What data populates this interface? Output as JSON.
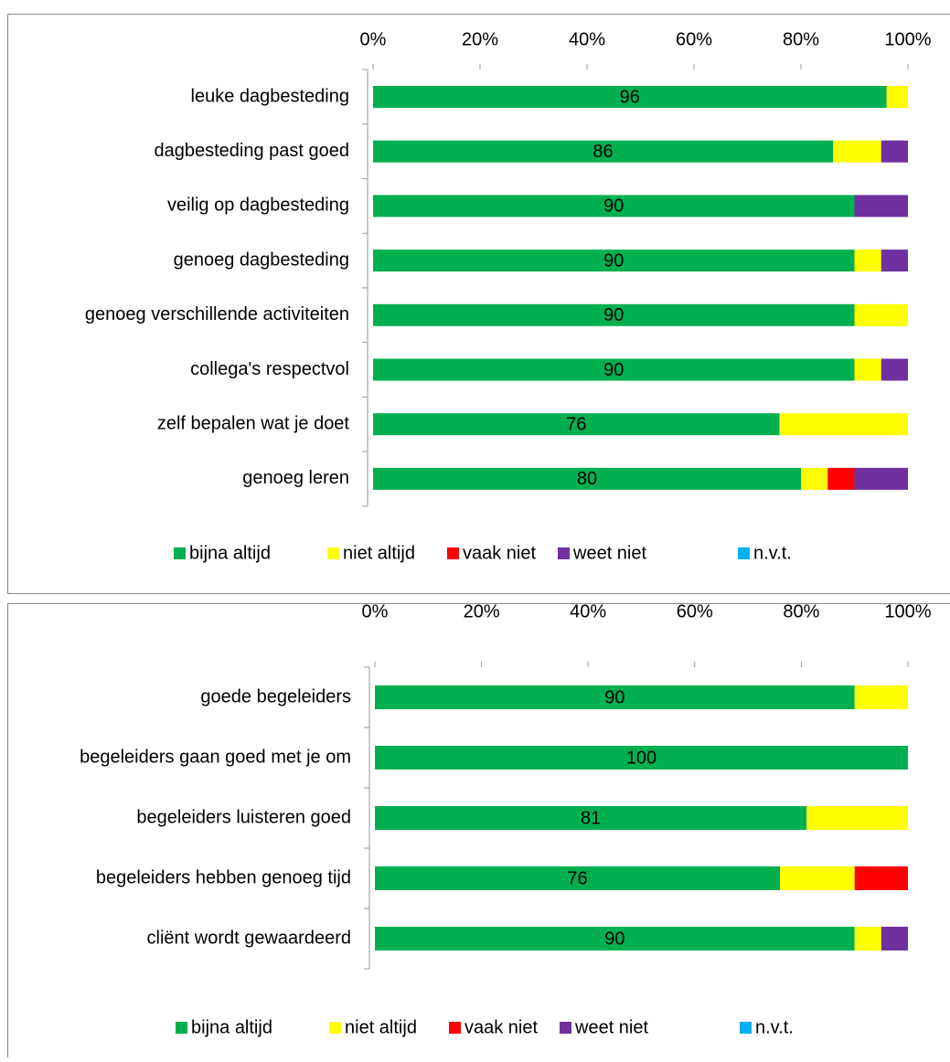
{
  "chart_data": [
    {
      "type": "stacked_barh",
      "categories": [
        "leuke dagbesteding",
        "dagbesteding past goed",
        "veilig op dagbesteding",
        "genoeg dagbesteding",
        "genoeg verschillende activiteiten",
        "collega's respectvol",
        "zelf bepalen wat je doet",
        "genoeg leren"
      ],
      "series": [
        {
          "name": "bijna altijd",
          "color": "#00b050",
          "values": [
            96,
            86,
            90,
            90,
            90,
            90,
            76,
            80
          ]
        },
        {
          "name": "niet altijd",
          "color": "#ffff00",
          "values": [
            4,
            9,
            0,
            5,
            10,
            5,
            24,
            5
          ]
        },
        {
          "name": "vaak niet",
          "color": "#ff0000",
          "values": [
            0,
            0,
            0,
            0,
            0,
            0,
            0,
            5
          ]
        },
        {
          "name": "weet niet",
          "color": "#7030a0",
          "values": [
            0,
            5,
            10,
            5,
            0,
            5,
            0,
            10
          ]
        },
        {
          "name": "n.v.t.",
          "color": "#00b0f0",
          "values": [
            0,
            0,
            0,
            0,
            0,
            0,
            0,
            0
          ]
        }
      ],
      "xlim": [
        0,
        100
      ],
      "xticks": [
        {
          "value": 0,
          "label": "0%"
        },
        {
          "value": 20,
          "label": "20%"
        },
        {
          "value": 40,
          "label": "40%"
        },
        {
          "value": 60,
          "label": "60%"
        },
        {
          "value": 80,
          "label": "80%"
        },
        {
          "value": 100,
          "label": "100%"
        }
      ],
      "legend": "bottom"
    },
    {
      "type": "stacked_barh",
      "categories": [
        "goede begeleiders",
        "begeleiders gaan goed met je om",
        "begeleiders luisteren goed",
        "begeleiders hebben genoeg tijd",
        "cliënt wordt gewaardeerd"
      ],
      "series": [
        {
          "name": "bijna altijd",
          "color": "#00b050",
          "values": [
            90,
            100,
            81,
            76,
            90
          ]
        },
        {
          "name": "niet altijd",
          "color": "#ffff00",
          "values": [
            10,
            0,
            19,
            14,
            5
          ]
        },
        {
          "name": "vaak niet",
          "color": "#ff0000",
          "values": [
            0,
            0,
            0,
            10,
            0
          ]
        },
        {
          "name": "weet niet",
          "color": "#7030a0",
          "values": [
            0,
            0,
            0,
            0,
            5
          ]
        },
        {
          "name": "n.v.t.",
          "color": "#00b0f0",
          "values": [
            0,
            0,
            0,
            0,
            0
          ]
        }
      ],
      "xlim": [
        0,
        100
      ],
      "xticks": [
        {
          "value": 0,
          "label": "0%"
        },
        {
          "value": 20,
          "label": "20%"
        },
        {
          "value": 40,
          "label": "40%"
        },
        {
          "value": 60,
          "label": "60%"
        },
        {
          "value": 80,
          "label": "80%"
        },
        {
          "value": 100,
          "label": "100%"
        }
      ],
      "legend": "bottom"
    }
  ]
}
